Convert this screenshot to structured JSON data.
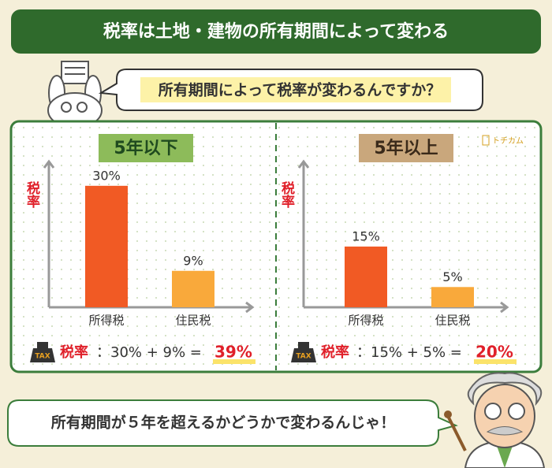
{
  "header": {
    "title": "税率は土地・建物の所有期間によって変わる"
  },
  "question": "所有期間によって税率が変わるんですか？",
  "logo": "トチカム",
  "chart_data": [
    {
      "type": "bar",
      "title": "5年以下",
      "y_label": "税率",
      "categories": [
        "所得税",
        "住民税"
      ],
      "values": [
        30,
        9
      ],
      "value_labels": [
        "30%",
        "9%"
      ],
      "colors": [
        "#f15a24",
        "#f9a93b"
      ],
      "ylim": [
        0,
        36
      ]
    },
    {
      "type": "bar",
      "title": "5年以上",
      "y_label": "税率",
      "categories": [
        "所得税",
        "住民税"
      ],
      "values": [
        15,
        5
      ],
      "value_labels": [
        "15%",
        "5%"
      ],
      "colors": [
        "#f15a24",
        "#f9a93b"
      ],
      "ylim": [
        0,
        36
      ]
    }
  ],
  "formulas": [
    {
      "icon": "TAX",
      "label": "税率",
      "expression": "：30% + 9% =",
      "result": "39%"
    },
    {
      "icon": "TAX",
      "label": "税率",
      "expression": "：15% + 5% =",
      "result": "20%"
    }
  ],
  "answer": "所有期間が５年を超えるかどうかで変わるんじゃ！"
}
